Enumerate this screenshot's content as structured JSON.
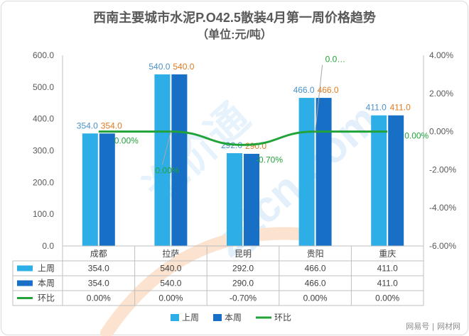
{
  "chart_data": {
    "type": "bar",
    "title": "西南主要城市水泥P.O42.5散装4月第一周价格趋势",
    "subtitle": "（单位:元/吨）",
    "categories": [
      "成都",
      "拉萨",
      "昆明",
      "贵阳",
      "重庆"
    ],
    "series": [
      {
        "name": "上周",
        "type": "bar",
        "axis": "left",
        "values": [
          354.0,
          540.0,
          292.0,
          466.0,
          411.0
        ],
        "labels": [
          "354.0",
          "540.0",
          "292.0",
          "466.0",
          "411.0"
        ],
        "table_values": [
          "354.0",
          "540.0",
          "292.0",
          "466.0",
          "411.0"
        ],
        "color": "#2EAEE6",
        "label_color": "#4A91C9"
      },
      {
        "name": "本周",
        "type": "bar",
        "axis": "left",
        "values": [
          354.0,
          540.0,
          290.0,
          466.0,
          411.0
        ],
        "labels": [
          "354.0",
          "540.0",
          "290.0",
          "466.0",
          "411.0"
        ],
        "table_values": [
          "354.0",
          "540.0",
          "290.0",
          "466.0",
          "411.0"
        ],
        "color": "#1870C6",
        "label_color": "#E07B20"
      },
      {
        "name": "环比",
        "type": "line",
        "axis": "right",
        "values": [
          0.0,
          0.0,
          -0.7,
          0.0,
          0.0
        ],
        "labels": [
          "0.00%",
          "0.00%",
          "-0.70%",
          "0.0…",
          "0.00%"
        ],
        "table_values": [
          "0.00%",
          "0.00%",
          "-0.70%",
          "0.00%",
          "0.00%"
        ],
        "color": "#22A33A",
        "label_color": "#22A33A"
      }
    ],
    "y_left": {
      "ticks": [
        0,
        100,
        200,
        300,
        400,
        500,
        600
      ],
      "tick_labels": [
        "0.0",
        "100.0",
        "200.0",
        "300.0",
        "400.0",
        "500.0",
        "600.0"
      ],
      "ylim": [
        0,
        600
      ]
    },
    "y_right": {
      "ticks": [
        -6,
        -4,
        -2,
        0,
        2,
        4
      ],
      "tick_labels": [
        "-6.00%",
        "-4.00%",
        "-2.00%",
        "0.00%",
        "2.00%",
        "4.00%"
      ],
      "ylim": [
        -6,
        4
      ]
    },
    "legend": {
      "position": "bottom",
      "items": [
        "上周",
        "本周",
        "环比"
      ]
    },
    "grid": false,
    "data_table": true
  },
  "watermark": {
    "text": "zjtcn.com",
    "brand": "造价通"
  },
  "credit": "网易号 | 网材网"
}
